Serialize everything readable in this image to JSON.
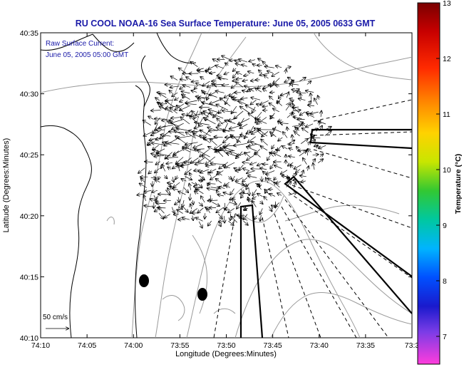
{
  "chart_data": {
    "type": "vector-field-map",
    "title": "RU COOL  NOAA-16  Sea Surface Temperature:  June 05, 2005 0633 GMT",
    "xlabel": "Longitude (Degrees:Minutes)",
    "ylabel": "Latitude (Degrees:Minutes)",
    "x_ticks": [
      "74:10",
      "74:05",
      "74:00",
      "73:55",
      "73:50",
      "73:45",
      "73:40",
      "73:35",
      "73:3"
    ],
    "y_ticks": [
      "40:35",
      "40:30",
      "40:25",
      "40:20",
      "40:15",
      "40:10"
    ],
    "xlim_deg_west": [
      74.1667,
      73.5
    ],
    "ylim_deg_north": [
      40.1667,
      40.5833
    ],
    "legend_title": "Raw Surface Current:",
    "legend_time": "June 05, 2005 05:00 GMT",
    "scale_arrow_label": "50 cm/s",
    "colorbar": {
      "label": "Temperature (°C)",
      "ticks": [
        "13",
        "12",
        "11",
        "10",
        "9",
        "8",
        "7"
      ],
      "range": [
        6.5,
        13
      ]
    },
    "colors": {
      "title": "#1a1aa8",
      "coast": "#000000",
      "bathymetry": "#9a9a9a",
      "vectors": "#000000"
    }
  }
}
